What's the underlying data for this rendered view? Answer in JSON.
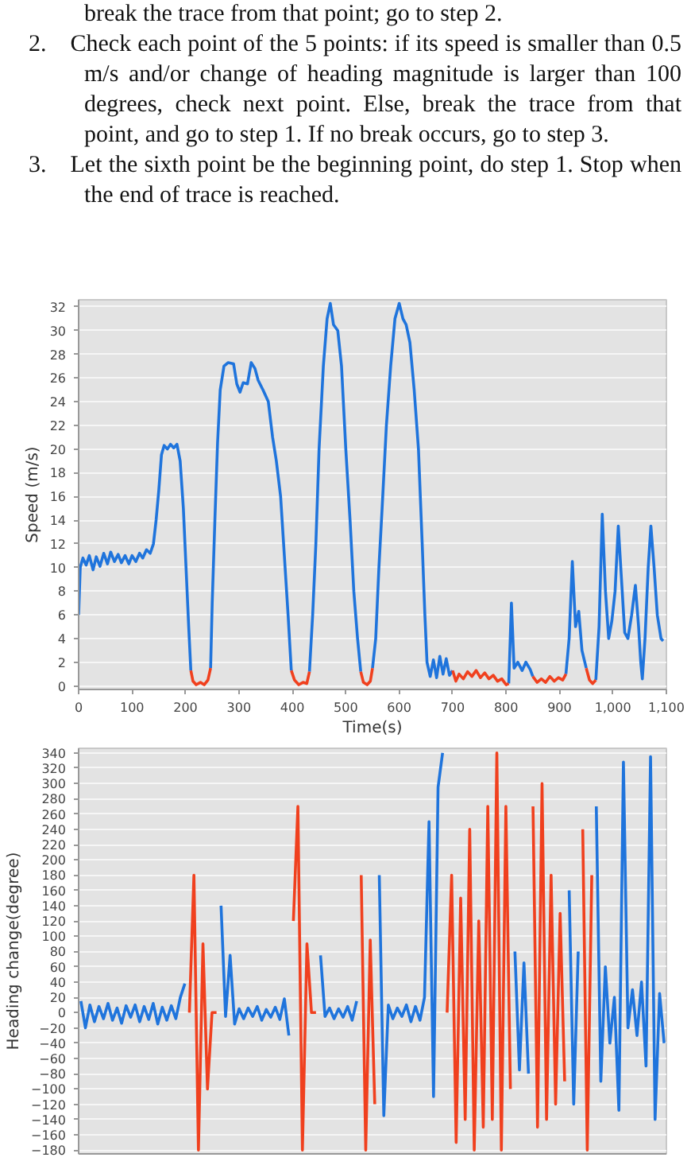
{
  "chart_data": [
    {
      "type": "line",
      "xlabel": "Time(s)",
      "ylabel": "Speed (m/s)",
      "grid": "y",
      "annotations": [
        "break the trace from that point; go to step 2.",
        "2. Check each point of the 5 points: if its speed is smaller than 0.5 m/s and/or change of heading magnitude is larger than 100 degrees, check next point. Else, break the trace from that point, and go to step 1. If no break occurs, go to step 3.",
        "3. Let the sixth point be the beginning point, do step 1. Stop when the end of trace is reached."
      ],
      "xlim": [
        0,
        1100
      ],
      "xticks": [
        0,
        100,
        200,
        300,
        400,
        500,
        600,
        700,
        800,
        900,
        {
          "value": 1000,
          "label": "1,000"
        },
        {
          "value": 1100,
          "label": "1,100"
        }
      ],
      "ylim": [
        -0.3,
        32.6
      ],
      "yticks": [
        0,
        2,
        4,
        6,
        8,
        10,
        12,
        14,
        16,
        18,
        20,
        22,
        24,
        26,
        28,
        30,
        32
      ],
      "series": [
        {
          "color": "#1f74dc",
          "x": [
            0,
            3,
            8,
            14,
            20,
            27,
            33,
            40,
            47,
            54,
            60,
            67,
            74,
            80,
            87,
            94,
            100,
            107,
            114,
            120,
            127,
            134,
            140,
            145,
            150,
            155,
            160,
            166,
            172,
            178,
            184,
            190,
            196,
            201,
            206,
            210,
            228,
            247,
            250,
            255,
            260,
            265,
            272,
            280,
            290,
            296,
            302,
            308,
            316,
            323,
            330,
            336,
            345,
            355,
            363,
            370,
            378,
            385,
            392,
            398,
            415,
            432,
            438,
            444,
            450,
            458,
            465,
            471,
            477,
            485,
            492,
            500,
            508,
            515,
            522,
            528,
            540,
            550,
            556,
            562,
            568,
            576,
            584,
            592,
            600,
            607,
            613,
            620,
            628,
            636,
            643,
            648,
            652,
            658,
            664,
            670,
            676,
            682,
            688,
            694,
            700,
            750,
            805,
            810,
            815,
            822,
            830,
            837,
            845,
            850,
            880,
            912,
            918,
            924,
            930,
            936,
            942,
            950,
            960,
            968,
            974,
            980,
            986,
            992,
            998,
            1004,
            1010,
            1016,
            1022,
            1028,
            1035,
            1042,
            1048,
            1052,
            1055,
            1060,
            1066,
            1071,
            1077,
            1083,
            1090,
            1094
          ],
          "values": [
            6,
            10,
            10.8,
            10.2,
            11,
            9.8,
            10.9,
            10.1,
            11.2,
            10.3,
            11.3,
            10.5,
            11.1,
            10.4,
            11,
            10.3,
            11,
            10.5,
            11.2,
            10.8,
            11.5,
            11.2,
            12,
            14,
            16.5,
            19.5,
            20.3,
            20,
            20.4,
            20.1,
            20.4,
            19,
            15,
            10,
            5,
            1.3,
            null,
            1.5,
            7,
            14,
            20.5,
            25,
            27,
            27.3,
            27.2,
            25.5,
            24.8,
            25.6,
            25.5,
            27.3,
            26.8,
            25.8,
            25,
            24,
            21,
            19,
            16,
            11,
            6,
            1.3,
            null,
            1.2,
            6,
            12,
            20,
            27,
            31,
            32.3,
            30.5,
            30,
            27,
            20,
            14,
            8,
            4,
            1.2,
            null,
            1.5,
            4,
            10,
            15,
            22,
            27,
            31,
            32.3,
            31,
            30.5,
            29,
            25,
            20,
            12,
            6,
            2,
            0.8,
            2.2,
            0.7,
            2.5,
            1,
            2.3,
            0.9,
            1.3,
            null,
            0.2,
            7,
            1.5,
            2,
            1.3,
            2,
            1.4,
            0.8,
            null,
            1,
            4,
            10.5,
            5,
            6.3,
            3,
            1.5,
            null,
            0.5,
            5,
            14.5,
            8,
            4,
            5.5,
            8,
            13.5,
            9,
            4.5,
            4,
            6,
            8.5,
            5,
            2,
            0.6,
            4,
            10,
            13.5,
            10,
            6,
            4,
            3.8
          ]
        },
        {
          "color": "#f0401e",
          "x": [
            210,
            214,
            220,
            228,
            235,
            242,
            247,
            320,
            398,
            404,
            412,
            420,
            427,
            432,
            480,
            528,
            533,
            540,
            546,
            550,
            620,
            700,
            706,
            712,
            720,
            728,
            736,
            744,
            752,
            760,
            768,
            776,
            784,
            792,
            800,
            805,
            830,
            850,
            858,
            866,
            874,
            882,
            890,
            898,
            906,
            912,
            930,
            950,
            956,
            962,
            968
          ],
          "values": [
            1.3,
            0.4,
            0.1,
            0.3,
            0.1,
            0.5,
            1.5,
            null,
            1.3,
            0.5,
            0.1,
            0.3,
            0.2,
            1.2,
            null,
            1.2,
            0.3,
            0.1,
            0.4,
            1.5,
            null,
            1.3,
            0.4,
            1,
            0.6,
            1.2,
            0.8,
            1.3,
            0.7,
            1.1,
            0.6,
            0.9,
            0.4,
            0.6,
            0.1,
            0.2,
            null,
            0.8,
            0.3,
            0.6,
            0.3,
            0.8,
            0.4,
            0.7,
            0.5,
            1,
            null,
            1.5,
            0.5,
            0.2,
            0.5
          ]
        }
      ]
    },
    {
      "type": "line",
      "ylabel": "Heading change(degree)",
      "grid": "y",
      "tick_labels": "y",
      "categories": [
        null,
        null,
        null,
        null,
        null,
        null,
        null,
        null,
        null,
        null,
        null,
        null,
        null,
        null,
        null,
        null,
        null,
        null,
        null,
        null,
        null,
        null,
        null,
        null,
        null,
        null,
        null,
        null,
        null,
        null,
        null,
        null,
        null,
        null,
        null,
        null,
        null,
        null,
        null,
        null,
        null,
        null,
        null,
        null,
        null,
        null,
        null,
        null,
        null,
        null,
        null,
        null,
        null,
        null,
        null,
        null,
        null,
        null,
        null,
        null,
        null,
        null,
        null,
        null,
        null,
        null,
        null,
        null,
        null,
        null,
        null,
        null,
        null,
        null,
        null,
        null,
        null,
        null,
        null,
        null,
        null,
        null,
        null,
        null,
        null,
        null,
        null,
        null,
        null,
        null,
        null,
        null,
        null,
        null,
        null,
        null,
        null,
        null,
        null,
        null,
        null,
        null,
        null,
        null,
        null,
        null,
        null,
        null,
        null,
        null,
        null,
        null,
        null,
        null,
        null,
        null,
        null,
        null,
        null,
        null,
        null,
        null,
        null,
        null,
        null,
        null,
        null,
        null,
        null,
        null
      ],
      "ylim": [
        -185,
        346
      ],
      "yticks": [
        -180,
        -160,
        -140,
        -120,
        -100,
        -80,
        -60,
        -40,
        -20,
        0,
        20,
        40,
        60,
        80,
        100,
        120,
        140,
        160,
        180,
        200,
        220,
        240,
        260,
        280,
        300,
        320,
        340
      ],
      "series": [
        {
          "color": "#1f74dc",
          "values": [
            15,
            -20,
            10,
            -12,
            8,
            -8,
            12,
            -10,
            6,
            -14,
            9,
            -6,
            10,
            -12,
            8,
            -9,
            12,
            -15,
            7,
            -10,
            9,
            -8,
            20,
            38,
            null,
            null,
            null,
            null,
            null,
            null,
            null,
            140,
            -5,
            75,
            -15,
            5,
            -8,
            6,
            -5,
            8,
            -10,
            4,
            -6,
            7,
            -9,
            18,
            -30,
            null,
            null,
            null,
            null,
            null,
            null,
            75,
            -5,
            6,
            -8,
            5,
            -6,
            8,
            -10,
            15,
            null,
            null,
            null,
            null,
            180,
            -135,
            10,
            -8,
            6,
            -5,
            10,
            -12,
            8,
            -10,
            20,
            250,
            -110,
            295,
            340,
            null,
            null,
            null,
            null,
            null,
            null,
            null,
            null,
            null,
            null,
            null,
            null,
            null,
            null,
            null,
            80,
            -75,
            65,
            -80,
            null,
            null,
            null,
            null,
            null,
            null,
            null,
            null,
            160,
            -120,
            80,
            null,
            null,
            null,
            270,
            -90,
            60,
            -40,
            20,
            -128,
            328,
            -20,
            30,
            -30,
            40,
            -70,
            335,
            -140,
            25,
            -40
          ]
        },
        {
          "color": "#f0401e",
          "values": [
            null,
            null,
            null,
            null,
            null,
            null,
            null,
            null,
            null,
            null,
            null,
            null,
            null,
            null,
            null,
            null,
            null,
            null,
            null,
            null,
            null,
            null,
            null,
            null,
            0,
            180,
            -180,
            90,
            -100,
            0,
            0,
            null,
            null,
            null,
            null,
            null,
            null,
            null,
            null,
            null,
            null,
            null,
            null,
            null,
            null,
            null,
            null,
            120,
            270,
            -180,
            90,
            0,
            0,
            null,
            null,
            null,
            null,
            null,
            null,
            null,
            null,
            null,
            180,
            -180,
            95,
            -120,
            null,
            null,
            null,
            null,
            null,
            null,
            null,
            null,
            null,
            null,
            null,
            null,
            null,
            null,
            null,
            0,
            180,
            -170,
            150,
            -140,
            240,
            -180,
            120,
            -150,
            270,
            -140,
            340,
            -180,
            270,
            -100,
            null,
            null,
            null,
            null,
            270,
            -150,
            300,
            -140,
            180,
            -120,
            130,
            -90,
            null,
            null,
            null,
            240,
            -180,
            180,
            null,
            null,
            null,
            null,
            null,
            null,
            null,
            null,
            null,
            null,
            null,
            null,
            null,
            null,
            null,
            null
          ]
        }
      ]
    }
  ]
}
